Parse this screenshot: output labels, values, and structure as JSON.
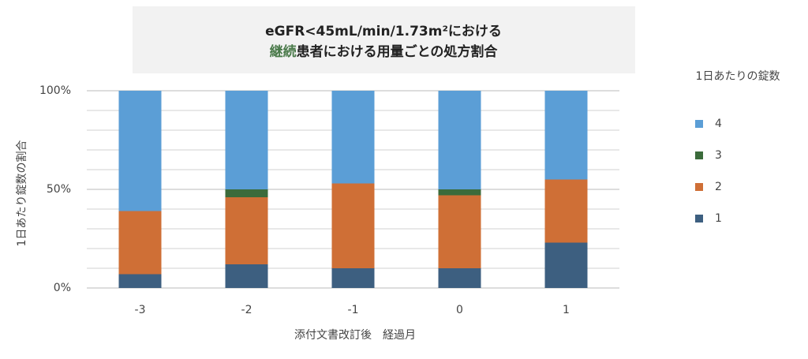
{
  "chart_data": {
    "type": "stacked_bar",
    "title": "eGFR<45mL/min/1.73m²における",
    "subtitle_highlight": "継続",
    "subtitle": "患者における用量ごとの処方割合",
    "x_label": "添付文書改訂後　経過月",
    "y_label": "1日あたり錠数の割合",
    "legend_title": "1日あたりの錠数",
    "legend": "right",
    "categories": [
      "-3",
      "-2",
      "-1",
      "0",
      "1"
    ],
    "series": [
      {
        "name": "1",
        "color": "#3d5f80",
        "values": [
          7,
          12,
          10,
          10,
          23
        ]
      },
      {
        "name": "2",
        "color": "#cf6f36",
        "values": [
          32,
          34,
          43,
          37,
          32
        ]
      },
      {
        "name": "3",
        "color": "#3b6b3b",
        "values": [
          0,
          4,
          0,
          3,
          0
        ]
      },
      {
        "name": "4",
        "color": "#5b9ed6",
        "values": [
          61,
          50,
          47,
          50,
          45
        ]
      }
    ],
    "ylim": [
      0,
      100
    ],
    "yticks": [
      {
        "value": 0,
        "label": "0%"
      },
      {
        "value": 50,
        "label": "50%"
      },
      {
        "value": 100,
        "label": "100%"
      }
    ],
    "minor_yticks": [
      10,
      20,
      30,
      40,
      60,
      70,
      80,
      90
    ],
    "grid": true
  }
}
